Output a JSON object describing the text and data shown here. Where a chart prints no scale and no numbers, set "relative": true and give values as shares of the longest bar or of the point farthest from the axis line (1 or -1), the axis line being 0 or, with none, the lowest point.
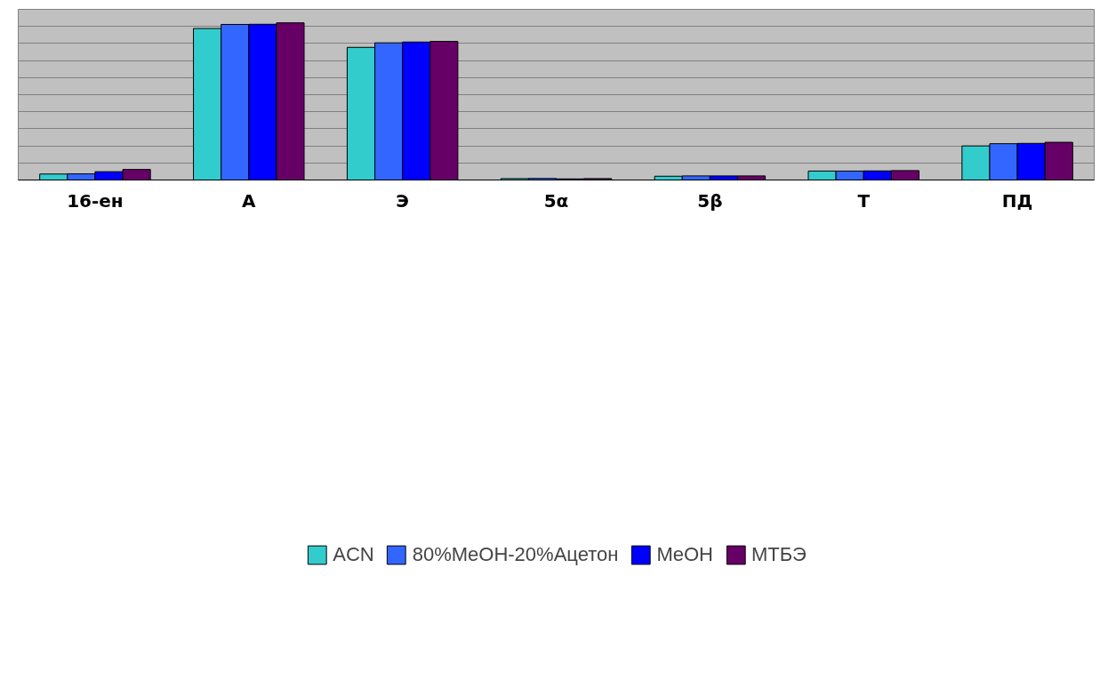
{
  "chart_data": {
    "type": "bar",
    "relative": true,
    "grid": "y",
    "legend": "bottom",
    "categories": [
      "16-ен",
      "А",
      "Э",
      "5α",
      "5β",
      "Т",
      "ПД"
    ],
    "series": [
      {
        "name": "ACN",
        "color": "#33cccc",
        "values": [
          0.038,
          0.964,
          0.844,
          0.009,
          0.024,
          0.057,
          0.217
        ]
      },
      {
        "name": "80%MeOH-20%Ацетон",
        "color": "#3366ff",
        "values": [
          0.039,
          0.99,
          0.873,
          0.01,
          0.026,
          0.057,
          0.231
        ]
      },
      {
        "name": "MeOH",
        "color": "#0000ff",
        "values": [
          0.053,
          0.991,
          0.878,
          0.007,
          0.026,
          0.058,
          0.233
        ]
      },
      {
        "name": "MTБЭ",
        "color": "#660066",
        "values": [
          0.067,
          1.0,
          0.882,
          0.009,
          0.026,
          0.06,
          0.24
        ]
      }
    ]
  }
}
